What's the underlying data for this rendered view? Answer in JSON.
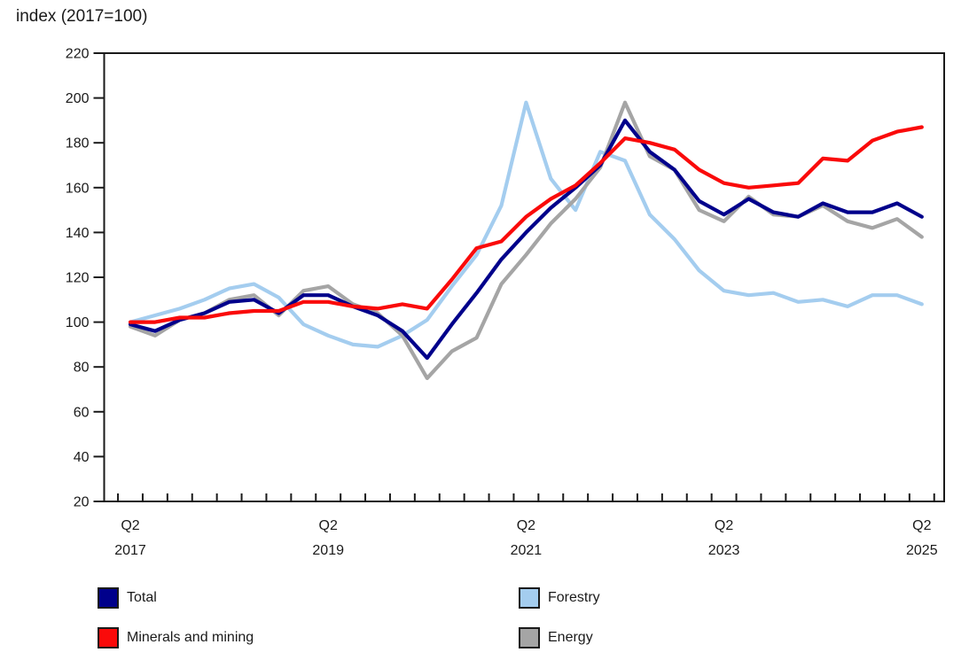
{
  "title": "index (2017=100)",
  "legend": {
    "items": [
      {
        "label": "Total",
        "color": "#00008B"
      },
      {
        "label": "Forestry",
        "color": "#A4CDEF"
      },
      {
        "label": "Minerals and mining",
        "color": "#FA0A0A"
      },
      {
        "label": "Energy",
        "color": "#A5A5A5"
      }
    ]
  },
  "chart_data": {
    "type": "line",
    "title": "index (2017=100)",
    "xlabel": "",
    "ylabel": "index (2017=100)",
    "ylim": [
      20,
      220
    ],
    "grid": false,
    "legend_position": "bottom",
    "y_axis": {
      "min": 20,
      "max": 220,
      "step": 20,
      "ticks": [
        220,
        200,
        180,
        160,
        140,
        120,
        100,
        80,
        60,
        40,
        20
      ]
    },
    "x_major_labels": [
      {
        "index": 0,
        "line1": "Q2",
        "line2": "2017"
      },
      {
        "index": 8,
        "line1": "Q2",
        "line2": "2019"
      },
      {
        "index": 16,
        "line1": "Q2",
        "line2": "2021"
      },
      {
        "index": 24,
        "line1": "Q2",
        "line2": "2023"
      },
      {
        "index": 32,
        "line1": "Q2",
        "line2": "2025"
      }
    ],
    "x": [
      "2017 Q2",
      "2017 Q3",
      "2017 Q4",
      "2018 Q1",
      "2018 Q2",
      "2018 Q3",
      "2018 Q4",
      "2019 Q1",
      "2019 Q2",
      "2019 Q3",
      "2019 Q4",
      "2020 Q1",
      "2020 Q2",
      "2020 Q3",
      "2020 Q4",
      "2021 Q1",
      "2021 Q2",
      "2021 Q3",
      "2021 Q4",
      "2022 Q1",
      "2022 Q2",
      "2022 Q3",
      "2022 Q4",
      "2023 Q1",
      "2023 Q2",
      "2023 Q3",
      "2023 Q4",
      "2024 Q1",
      "2024 Q2",
      "2024 Q3",
      "2024 Q4",
      "2025 Q1",
      "2025 Q2"
    ],
    "series": [
      {
        "name": "Total",
        "color": "#00008B",
        "values": [
          99,
          96,
          101,
          104,
          109,
          110,
          104,
          112,
          112,
          107,
          103,
          96,
          84,
          99,
          113,
          128,
          140,
          151,
          160,
          170,
          190,
          176,
          168,
          154,
          148,
          155,
          149,
          147,
          153,
          149,
          149,
          153,
          147
        ]
      },
      {
        "name": "Forestry",
        "color": "#A4CDEF",
        "values": [
          100,
          103,
          106,
          110,
          115,
          117,
          111,
          99,
          94,
          90,
          89,
          94,
          101,
          116,
          130,
          152,
          198,
          164,
          150,
          176,
          172,
          148,
          137,
          123,
          114,
          112,
          113,
          109,
          110,
          107,
          112,
          112,
          108
        ]
      },
      {
        "name": "Minerals and mining",
        "color": "#FA0A0A",
        "values": [
          100,
          100,
          102,
          102,
          104,
          105,
          105,
          109,
          109,
          107,
          106,
          108,
          106,
          119,
          133,
          136,
          147,
          155,
          161,
          171,
          182,
          180,
          177,
          168,
          162,
          160,
          161,
          162,
          173,
          172,
          181,
          185,
          187
        ]
      },
      {
        "name": "Energy",
        "color": "#A5A5A5",
        "values": [
          98,
          94,
          101,
          104,
          110,
          112,
          103,
          114,
          116,
          108,
          104,
          94,
          75,
          87,
          93,
          117,
          130,
          144,
          155,
          169,
          198,
          174,
          168,
          150,
          145,
          156,
          148,
          147,
          152,
          145,
          142,
          146,
          138
        ]
      }
    ],
    "draw_order": [
      "Forestry",
      "Energy",
      "Total",
      "Minerals and mining"
    ]
  }
}
